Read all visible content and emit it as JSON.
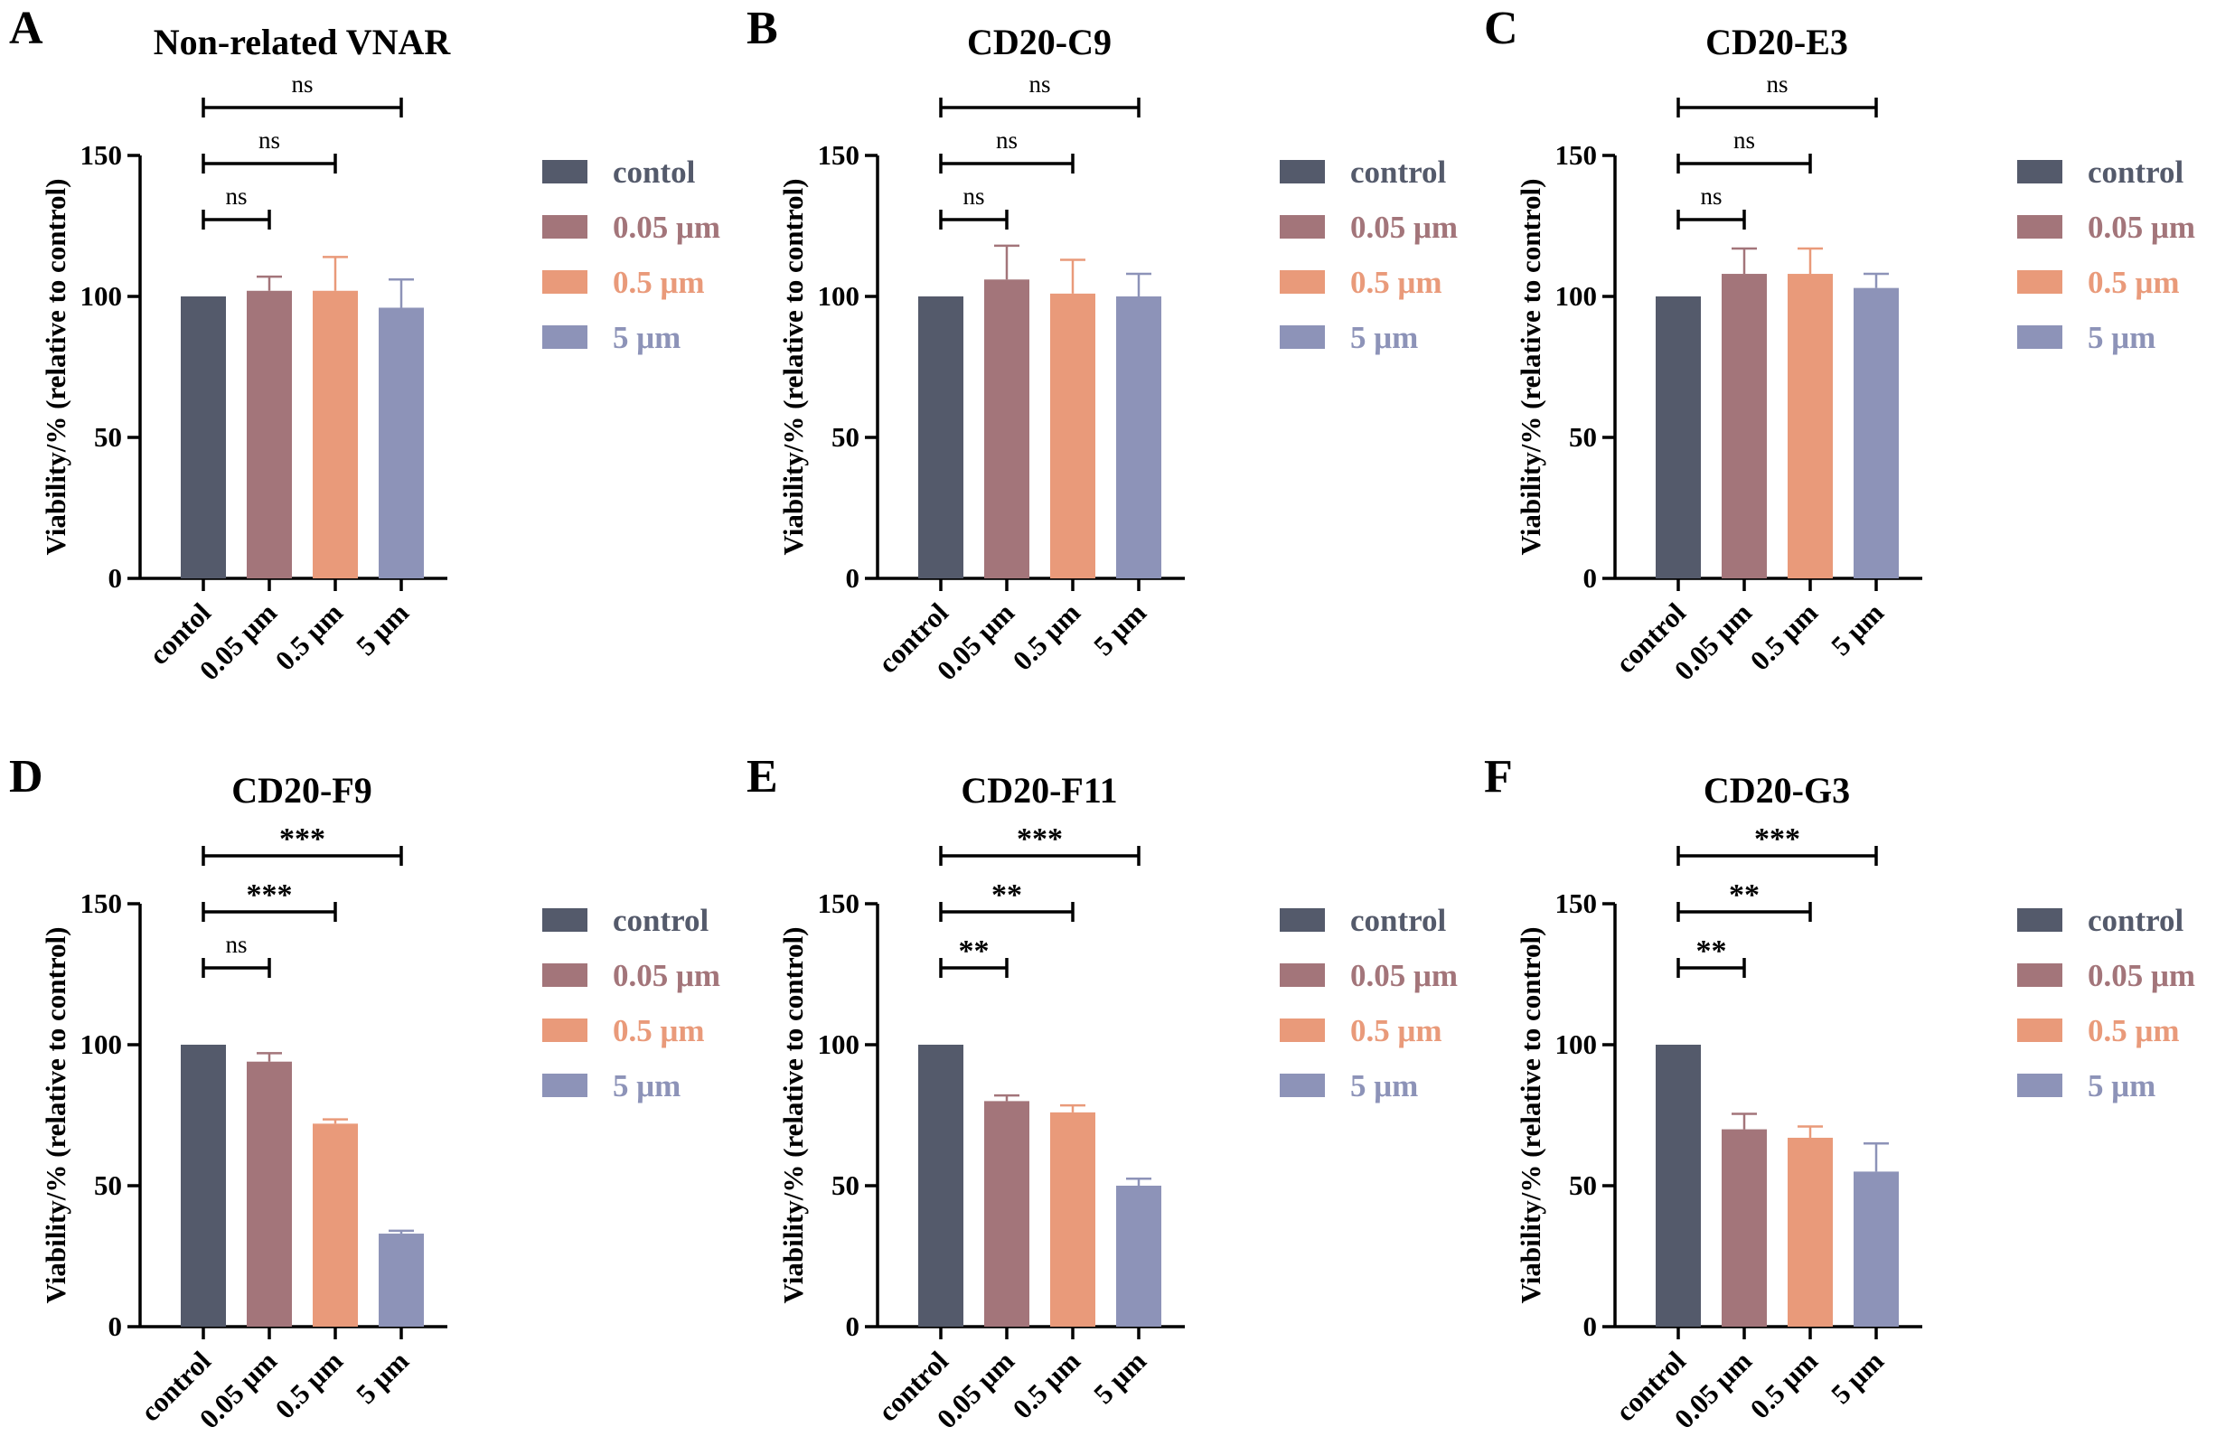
{
  "figure": {
    "colors": {
      "control": "#545a6b",
      "c005": "#a3757a",
      "c05": "#e99a7a",
      "c5": "#8d93b8",
      "axis": "#000000"
    }
  },
  "chart_data": [
    {
      "panel": "A",
      "type": "bar",
      "title": "Non-related VNAR",
      "ylabel": "Viability/% (relative to control)",
      "ylim": [
        0,
        150
      ],
      "yticks": [
        "0",
        "50",
        "100",
        "150"
      ],
      "categories": [
        "contol",
        "0.05 μm",
        "0.5 μm",
        "5 μm"
      ],
      "values": [
        100,
        102,
        102,
        96
      ],
      "errors": [
        0,
        5,
        12,
        10
      ],
      "legend": [
        "contol",
        "0.05 μm",
        "0.5 μm",
        "5 μm"
      ],
      "significance": [
        {
          "from": 0,
          "to": 1,
          "label": "ns"
        },
        {
          "from": 0,
          "to": 2,
          "label": "ns"
        },
        {
          "from": 0,
          "to": 3,
          "label": "ns"
        }
      ]
    },
    {
      "panel": "B",
      "type": "bar",
      "title": "CD20-C9",
      "ylabel": "Viability/% (relative to control)",
      "ylim": [
        0,
        150
      ],
      "yticks": [
        "0",
        "50",
        "100",
        "150"
      ],
      "categories": [
        "control",
        "0.05 μm",
        "0.5 μm",
        "5 μm"
      ],
      "values": [
        100,
        106,
        101,
        100
      ],
      "errors": [
        0,
        12,
        12,
        8
      ],
      "legend": [
        "control",
        "0.05 μm",
        "0.5 μm",
        "5 μm"
      ],
      "significance": [
        {
          "from": 0,
          "to": 1,
          "label": "ns"
        },
        {
          "from": 0,
          "to": 2,
          "label": "ns"
        },
        {
          "from": 0,
          "to": 3,
          "label": "ns"
        }
      ]
    },
    {
      "panel": "C",
      "type": "bar",
      "title": "CD20-E3",
      "ylabel": "Viability/% (relative to control)",
      "ylim": [
        0,
        150
      ],
      "yticks": [
        "0",
        "50",
        "100",
        "150"
      ],
      "categories": [
        "control",
        "0.05 μm",
        "0.5 μm",
        "5 μm"
      ],
      "values": [
        100,
        108,
        108,
        103
      ],
      "errors": [
        0,
        9,
        9,
        5
      ],
      "legend": [
        "control",
        "0.05 μm",
        "0.5 μm",
        "5 μm"
      ],
      "significance": [
        {
          "from": 0,
          "to": 1,
          "label": "ns"
        },
        {
          "from": 0,
          "to": 2,
          "label": "ns"
        },
        {
          "from": 0,
          "to": 3,
          "label": "ns"
        }
      ]
    },
    {
      "panel": "D",
      "type": "bar",
      "title": "CD20-F9",
      "ylabel": "Viability/% (relative to control)",
      "ylim": [
        0,
        150
      ],
      "yticks": [
        "0",
        "50",
        "100",
        "150"
      ],
      "categories": [
        "control",
        "0.05 μm",
        "0.5 μm",
        "5 μm"
      ],
      "values": [
        100,
        94,
        72,
        33
      ],
      "errors": [
        0,
        3,
        1.5,
        1
      ],
      "legend": [
        "control",
        "0.05 μm",
        "0.5 μm",
        "5 μm"
      ],
      "significance": [
        {
          "from": 0,
          "to": 1,
          "label": "ns"
        },
        {
          "from": 0,
          "to": 2,
          "label": "***"
        },
        {
          "from": 0,
          "to": 3,
          "label": "***"
        }
      ]
    },
    {
      "panel": "E",
      "type": "bar",
      "title": "CD20-F11",
      "ylabel": "Viability/% (relative to control)",
      "ylim": [
        0,
        150
      ],
      "yticks": [
        "0",
        "50",
        "100",
        "150"
      ],
      "categories": [
        "control",
        "0.05 μm",
        "0.5 μm",
        "5 μm"
      ],
      "values": [
        100,
        80,
        76,
        50
      ],
      "errors": [
        0,
        2,
        2.5,
        2.5
      ],
      "legend": [
        "control",
        "0.05 μm",
        "0.5 μm",
        "5 μm"
      ],
      "significance": [
        {
          "from": 0,
          "to": 1,
          "label": "**"
        },
        {
          "from": 0,
          "to": 2,
          "label": "**"
        },
        {
          "from": 0,
          "to": 3,
          "label": "***"
        }
      ]
    },
    {
      "panel": "F",
      "type": "bar",
      "title": "CD20-G3",
      "ylabel": "Viability/% (relative to control)",
      "ylim": [
        0,
        150
      ],
      "yticks": [
        "0",
        "50",
        "100",
        "150"
      ],
      "categories": [
        "control",
        "0.05 μm",
        "0.5 μm",
        "5 μm"
      ],
      "values": [
        100,
        70,
        67,
        55
      ],
      "errors": [
        0,
        5.5,
        4,
        10
      ],
      "legend": [
        "control",
        "0.05 μm",
        "0.5 μm",
        "5 μm"
      ],
      "significance": [
        {
          "from": 0,
          "to": 1,
          "label": "**"
        },
        {
          "from": 0,
          "to": 2,
          "label": "**"
        },
        {
          "from": 0,
          "to": 3,
          "label": "***"
        }
      ]
    }
  ]
}
